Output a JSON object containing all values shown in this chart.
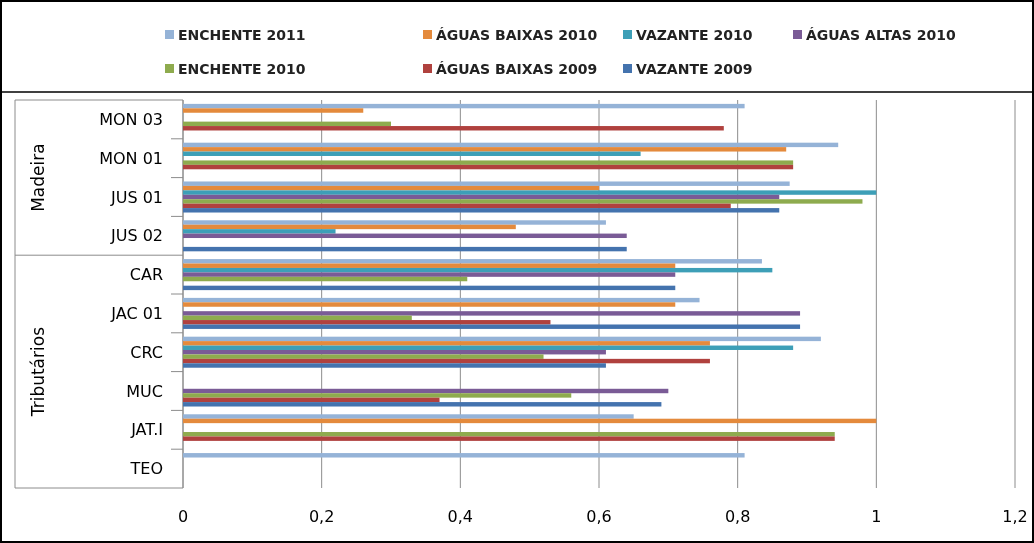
{
  "chart_data": {
    "type": "bar",
    "orientation": "horizontal",
    "categories": [
      "MON 03",
      "MON 01",
      "JUS 01",
      "JUS 02",
      "CAR",
      "JAC 01",
      "CRC",
      "MUC",
      "JAT.I",
      "TEO"
    ],
    "series": [
      {
        "name": "ENCHENTE 2011",
        "color": "#95b3d7",
        "values": [
          0.81,
          0.945,
          0.875,
          0.61,
          0.835,
          0.745,
          0.92,
          null,
          0.65,
          0.81
        ]
      },
      {
        "name": "ÁGUAS BAIXAS 2010",
        "color": "#e48a3c",
        "values": [
          0.26,
          0.87,
          0.6,
          0.48,
          0.71,
          0.71,
          0.76,
          null,
          1.0,
          null
        ]
      },
      {
        "name": "VAZANTE 2010",
        "color": "#3d9fb7",
        "values": [
          null,
          0.66,
          1.0,
          0.22,
          0.85,
          null,
          0.88,
          null,
          null,
          null
        ]
      },
      {
        "name": "ÁGUAS ALTAS 2010",
        "color": "#7a5b96",
        "values": [
          null,
          null,
          0.86,
          0.64,
          0.71,
          0.89,
          0.61,
          0.7,
          null,
          null
        ]
      },
      {
        "name": "ENCHENTE 2010",
        "color": "#8eab4e",
        "values": [
          0.3,
          0.88,
          0.98,
          null,
          0.41,
          0.33,
          0.52,
          0.56,
          0.94,
          null
        ]
      },
      {
        "name": "ÁGUAS BAIXAS 2009",
        "color": "#b0413e",
        "values": [
          0.78,
          0.88,
          0.79,
          null,
          null,
          0.53,
          0.76,
          0.37,
          0.94,
          null
        ]
      },
      {
        "name": "VAZANTE 2009",
        "color": "#4473ae",
        "values": [
          null,
          null,
          0.86,
          0.64,
          0.71,
          0.89,
          0.61,
          0.69,
          null,
          null
        ]
      }
    ],
    "xlim": [
      0,
      1.2
    ],
    "xticks": [
      0,
      {
        "value": 0.2,
        "label": "0,2"
      },
      {
        "value": 0.4,
        "label": "0,4"
      },
      {
        "value": 0.6,
        "label": "0,6"
      },
      {
        "value": 0.8,
        "label": "0,8"
      },
      1,
      {
        "value": 1.2,
        "label": "1,2"
      }
    ],
    "grid": "x",
    "legend": "top",
    "annotations": [
      "Madeira",
      "Tributários"
    ]
  }
}
